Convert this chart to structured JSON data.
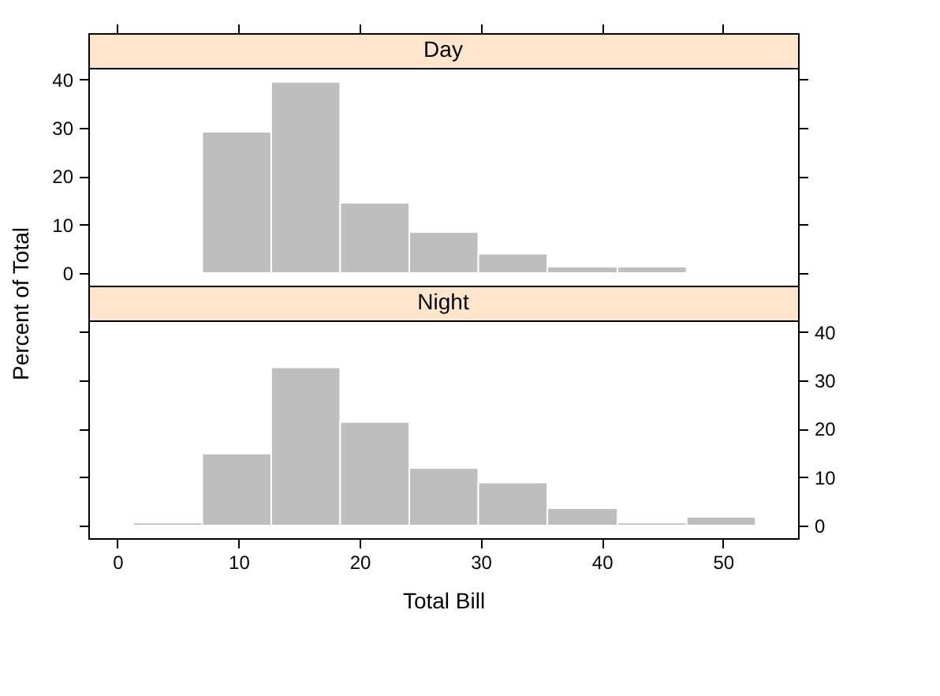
{
  "chart_data": [
    {
      "type": "histogram",
      "title": "Day",
      "ylabel": "Percent of Total",
      "color": "#bebebe",
      "bins": [
        7.0,
        12.7,
        18.4,
        24.1,
        29.8,
        35.5,
        41.3,
        47.0
      ],
      "values": [
        29.2,
        39.5,
        14.5,
        8.5,
        4.0,
        1.3,
        1.3
      ],
      "xlim": [
        -2.4,
        56.2
      ],
      "xticks": [
        0,
        10,
        20,
        30,
        40,
        50
      ],
      "ylim": [
        -2.6,
        42.4
      ],
      "yticks": [
        0,
        10,
        20,
        30,
        40
      ],
      "tick_labels": "y"
    },
    {
      "type": "histogram",
      "title": "Night",
      "xlabel": "Total Bill",
      "color": "#bebebe",
      "bins": [
        1.3,
        7.0,
        12.7,
        18.4,
        24.1,
        29.8,
        35.5,
        41.3,
        47.0,
        52.7
      ],
      "values": [
        0.6,
        14.9,
        32.7,
        21.4,
        11.9,
        8.9,
        3.6,
        0.6,
        1.8
      ],
      "xlim": [
        -2.4,
        56.2
      ],
      "xticks": [
        0,
        10,
        20,
        30,
        40,
        50
      ],
      "ylim": [
        -2.6,
        42.4
      ],
      "yticks": [
        0,
        10,
        20,
        30,
        40
      ]
    }
  ]
}
